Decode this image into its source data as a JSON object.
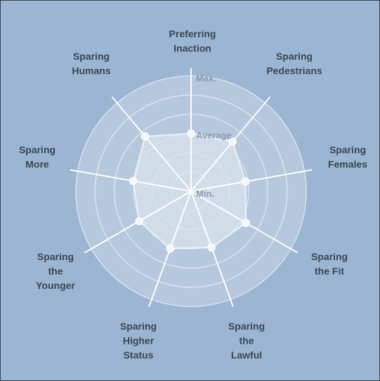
{
  "chart_data": {
    "type": "radar",
    "levels": [
      "Min.",
      "Average",
      "Max."
    ],
    "categories": [
      {
        "lines": [
          "Preferring",
          "Inaction"
        ],
        "value": 0.5
      },
      {
        "lines": [
          "Sparing",
          "Pedestrians"
        ],
        "value": 0.56
      },
      {
        "lines": [
          "Sparing",
          "Females"
        ],
        "value": 0.48
      },
      {
        "lines": [
          "Sparing",
          "the Fit"
        ],
        "value": 0.55
      },
      {
        "lines": [
          "Sparing",
          "the",
          "Lawful"
        ],
        "value": 0.52
      },
      {
        "lines": [
          "Sparing",
          "Higher",
          "Status"
        ],
        "value": 0.53
      },
      {
        "lines": [
          "Sparing",
          "the",
          "Younger"
        ],
        "value": 0.52
      },
      {
        "lines": [
          "Sparing",
          "More"
        ],
        "value": 0.51
      },
      {
        "lines": [
          "Sparing",
          "Humans"
        ],
        "value": 0.62
      }
    ],
    "ylim": [
      0,
      1
    ],
    "grid": true,
    "colors": {
      "background": "#9bb5d3",
      "fill": "#dbe3ec",
      "line": "#ffffff",
      "ring": "#e6ebf2",
      "label": "#3b4554",
      "level_label": "#8a9bb2"
    }
  }
}
